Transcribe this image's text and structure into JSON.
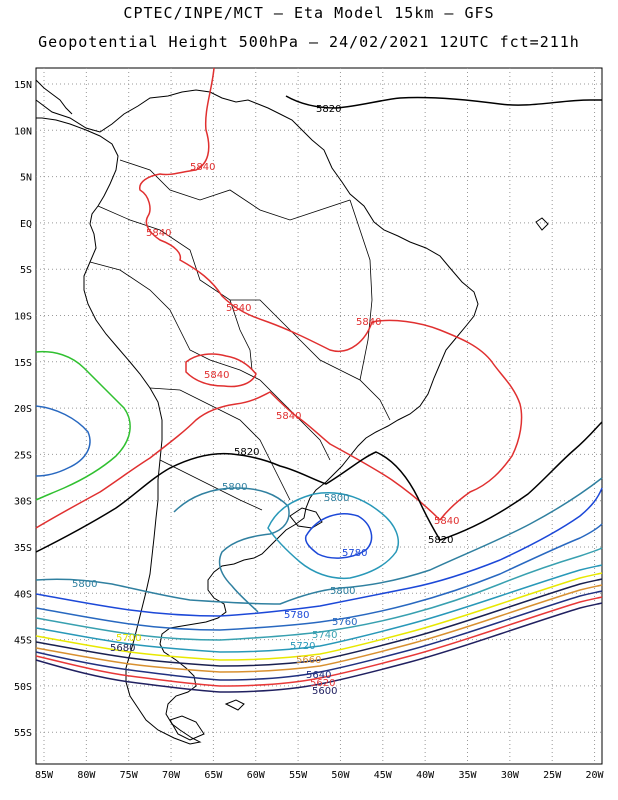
{
  "title_line1": "CPTEC/INPE/MCT –  Eta Model 15km – GFS",
  "title_line2": "Geopotential Height 500hPa – 24/02/2021 12UTC fct=211h",
  "axes": {
    "lat_labels": [
      "15N",
      "10N",
      "5N",
      "EQ",
      "5S",
      "10S",
      "15S",
      "20S",
      "25S",
      "30S",
      "35S",
      "40S",
      "45S",
      "50S",
      "55S"
    ],
    "lon_labels": [
      "85W",
      "80W",
      "75W",
      "70W",
      "65W",
      "60W",
      "55W",
      "50W",
      "45W",
      "40W",
      "35W",
      "30W",
      "25W",
      "20W"
    ]
  },
  "contour_colors": {
    "5600": "#202060",
    "5620": "#e83838",
    "5640": "#203080",
    "5660": "#d89030",
    "5680": "#1a2050",
    "5700": "#e8e800",
    "5720": "#2898b8",
    "5740": "#38a0b0",
    "5760": "#2868c0",
    "5780": "#1c48d8",
    "5800": "#3080a0",
    "5820": "#000000",
    "5840": "#e03030",
    "5860": "#30c030"
  },
  "labels": {
    "l5820_north": "5820",
    "l5840_a": "5840",
    "l5840_b": "5840",
    "l5840_c": "5840",
    "l5840_d": "5840",
    "l5840_e": "5840",
    "l5840_f": "5840",
    "l5840_g": "5840",
    "l5820_mid": "5820",
    "l5800_a": "5800",
    "l5800_b": "5800",
    "l5780_low": "5780",
    "l5820_east": "5820",
    "l5800_c": "5800",
    "l5800_d": "5800",
    "l5780": "5780",
    "l5760": "5760",
    "l5740": "5740",
    "l5720": "5720",
    "l5700": "5700",
    "l5680": "5680",
    "l5660": "5660",
    "l5640": "5640",
    "l5620": "5620",
    "l5600": "5600"
  }
}
